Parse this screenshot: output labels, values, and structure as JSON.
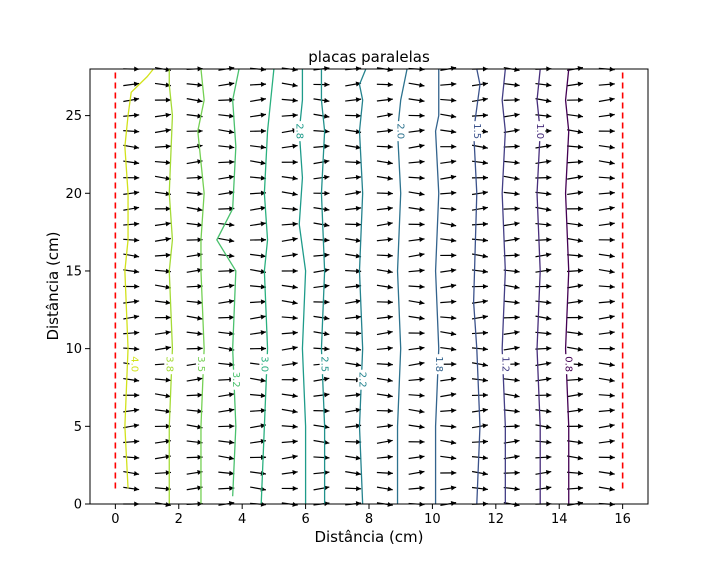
{
  "chart_data": {
    "type": "contour",
    "title": "placas paralelas",
    "xlabel": "Distância (cm)",
    "ylabel": "Distância (cm)",
    "xlim": [
      -0.8,
      16.8
    ],
    "ylim": [
      0,
      28
    ],
    "xticks": [
      0,
      2,
      4,
      6,
      8,
      10,
      12,
      14,
      16
    ],
    "yticks": [
      0,
      5,
      10,
      15,
      20,
      25
    ],
    "grid": false,
    "plates": {
      "x": [
        0,
        16
      ],
      "y_range": [
        1,
        28
      ],
      "color": "#ff0000",
      "style": "dashed"
    },
    "contours": [
      {
        "level": "4.0",
        "color": "#d2e21b",
        "x": [
          0.4,
          0.3,
          0.4,
          0.3,
          0.4,
          0.4,
          0.3,
          0.4,
          0.5,
          1.0,
          1.2
        ],
        "y": [
          1,
          5,
          10,
          15,
          17,
          20,
          23,
          25,
          26.5,
          27.5,
          28
        ],
        "label_pos": [
          0.6,
          9
        ]
      },
      {
        "level": "3.8",
        "color": "#a5db36",
        "x": [
          1.7,
          1.7,
          1.8,
          1.7,
          1.8,
          1.7,
          1.8,
          1.7,
          1.7
        ],
        "y": [
          0,
          5,
          10,
          15,
          17,
          20,
          25,
          27,
          28
        ],
        "label_pos": [
          1.7,
          9
        ]
      },
      {
        "level": "3.5",
        "color": "#75d054",
        "x": [
          2.7,
          2.7,
          2.8,
          2.7,
          2.7,
          2.8,
          2.6,
          2.8,
          2.7
        ],
        "y": [
          0,
          5,
          10,
          15,
          17,
          20,
          24,
          26,
          28
        ],
        "label_pos": [
          2.7,
          9
        ]
      },
      {
        "level": "3.2",
        "color": "#4ac16d",
        "x": [
          3.7,
          3.8,
          3.7,
          3.8,
          3.2,
          3.7,
          3.8,
          3.7,
          3.9
        ],
        "y": [
          0.5,
          5,
          10,
          15,
          17,
          19,
          23,
          26,
          28
        ],
        "label_pos": [
          3.8,
          8
        ]
      },
      {
        "level": "3.0",
        "color": "#2ab07f",
        "x": [
          4.6,
          4.7,
          4.8,
          4.7,
          4.8,
          4.7,
          4.8,
          4.9,
          5.0
        ],
        "y": [
          0,
          5,
          10,
          15,
          17,
          20,
          24,
          26,
          28
        ],
        "label_pos": [
          4.7,
          9
        ]
      },
      {
        "level": "2.8",
        "color": "#1e9b8a",
        "x": [
          6.0,
          6.0,
          5.9,
          6.0,
          5.8,
          5.9,
          5.8,
          5.9,
          5.9
        ],
        "y": [
          0,
          5,
          10,
          15,
          18,
          21,
          24,
          26,
          28
        ],
        "label_pos": [
          5.8,
          24
        ]
      },
      {
        "level": "2.5",
        "color": "#21918c",
        "x": [
          6.6,
          6.6,
          6.5,
          6.6,
          6.5,
          6.6,
          6.5,
          6.5
        ],
        "y": [
          0,
          5,
          10,
          15,
          20,
          24,
          26,
          28
        ],
        "label_pos": [
          6.6,
          9
        ]
      },
      {
        "level": "2.2",
        "color": "#25838e",
        "x": [
          7.8,
          7.7,
          7.8,
          7.7,
          7.8,
          7.7,
          7.8,
          7.7,
          7.9
        ],
        "y": [
          0,
          5,
          10,
          15,
          20,
          24,
          26,
          27,
          28
        ],
        "label_pos": [
          7.8,
          8
        ]
      },
      {
        "level": "2.0",
        "color": "#2c728e",
        "x": [
          8.9,
          8.9,
          9.0,
          8.9,
          9.0,
          8.9,
          9.0,
          9.2
        ],
        "y": [
          0,
          5,
          10,
          15,
          20,
          24,
          26,
          28
        ],
        "label_pos": [
          9.0,
          24
        ]
      },
      {
        "level": "1.8",
        "color": "#33638d",
        "x": [
          10.1,
          10.1,
          10.2,
          10.1,
          10.2,
          10.1,
          10.2,
          10.2,
          10.2
        ],
        "y": [
          0,
          5,
          10,
          15,
          20,
          24,
          25,
          26,
          28
        ],
        "label_pos": [
          10.2,
          9
        ]
      },
      {
        "level": "1.5",
        "color": "#3b528b",
        "x": [
          11.4,
          11.5,
          11.4,
          11.3,
          11.4,
          11.3,
          11.5,
          11.4
        ],
        "y": [
          0,
          5,
          10,
          13,
          20,
          24,
          27,
          28
        ],
        "label_pos": [
          11.4,
          24
        ]
      },
      {
        "level": "1.2",
        "color": "#433e85",
        "x": [
          12.3,
          12.3,
          12.2,
          12.3,
          12.2,
          12.3,
          12.2,
          12.3
        ],
        "y": [
          0,
          5,
          10,
          15,
          20,
          24,
          26,
          28
        ],
        "label_pos": [
          12.3,
          9
        ]
      },
      {
        "level": "1.0",
        "color": "#472d7b",
        "x": [
          13.4,
          13.4,
          13.3,
          13.4,
          13.3,
          13.4,
          13.3,
          13.4
        ],
        "y": [
          0,
          5,
          10,
          15,
          20,
          24,
          26,
          28
        ],
        "label_pos": [
          13.4,
          24
        ]
      },
      {
        "level": "0.8",
        "color": "#440154",
        "x": [
          14.3,
          14.3,
          14.2,
          14.3,
          14.2,
          14.3,
          14.2,
          14.3
        ],
        "y": [
          0,
          5,
          10,
          15,
          20,
          24,
          26,
          28
        ],
        "label_pos": [
          14.3,
          9
        ]
      }
    ],
    "quiver": {
      "x_range": [
        0,
        16
      ],
      "y_range": [
        0,
        28
      ],
      "x_step": 1,
      "y_step": 1,
      "direction": "+x",
      "color": "#000000"
    }
  }
}
